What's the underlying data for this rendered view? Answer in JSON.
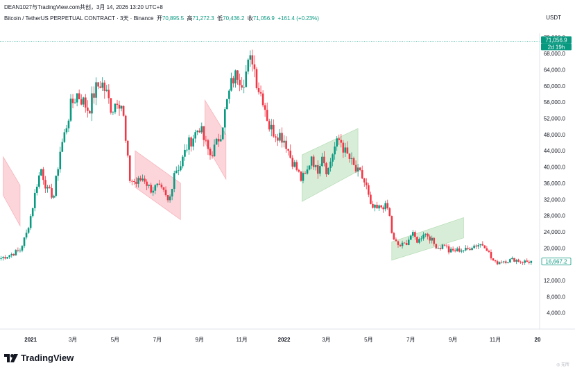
{
  "author_line": "DEAN1027与TradingView.com共创，3月 14, 2026 13:20 UTC+8",
  "symbol": {
    "title": "Bitcoin / TetherUS PERPETUAL CONTRACT · 3天 · Binance",
    "open_label": "开",
    "open": "70,895.5",
    "high_label": "高",
    "high": "71,272.3",
    "low_label": "低",
    "low": "70,436.2",
    "close_label": "收",
    "close": "71,056.9",
    "change": "+161.4 (+0.23%)"
  },
  "currency": "USDT",
  "logo_text": "TradingView",
  "watermark": "◎ 无所",
  "colors": {
    "up": "#089981",
    "down": "#f23645",
    "green_channel": "#b8dfb8",
    "red_channel": "#f7b3bb"
  },
  "chart_data": {
    "type": "candlestick",
    "y_ticks": [
      {
        "value": 4000,
        "label": "4,000.0"
      },
      {
        "value": 8000,
        "label": "8,000.0"
      },
      {
        "value": 12000,
        "label": "12,000.0"
      },
      {
        "value": 20000,
        "label": "20,000.0"
      },
      {
        "value": 24000,
        "label": "24,000.0"
      },
      {
        "value": 28000,
        "label": "28,000.0"
      },
      {
        "value": 32000,
        "label": "32,000.0"
      },
      {
        "value": 36000,
        "label": "36,000.0"
      },
      {
        "value": 40000,
        "label": "40,000.0"
      },
      {
        "value": 44000,
        "label": "44,000.0"
      },
      {
        "value": 48000,
        "label": "48,000.0"
      },
      {
        "value": 52000,
        "label": "52,000.0"
      },
      {
        "value": 56000,
        "label": "56,000.0"
      },
      {
        "value": 60000,
        "label": "60,000.0"
      },
      {
        "value": 64000,
        "label": "64,000.0"
      },
      {
        "value": 68000,
        "label": "68,000.0"
      },
      {
        "value": 72000,
        "label": "72,000.0"
      }
    ],
    "ylim": [
      0,
      73000
    ],
    "x_ticks": [
      {
        "month": 0,
        "label": "2021",
        "bold": true
      },
      {
        "month": 2,
        "label": "3月"
      },
      {
        "month": 4,
        "label": "5月"
      },
      {
        "month": 6,
        "label": "7月"
      },
      {
        "month": 8,
        "label": "9月"
      },
      {
        "month": 10,
        "label": "11月"
      },
      {
        "month": 12,
        "label": "2022",
        "bold": true
      },
      {
        "month": 14,
        "label": "3月"
      },
      {
        "month": 16,
        "label": "5月"
      },
      {
        "month": 18,
        "label": "7月"
      },
      {
        "month": 20,
        "label": "9月"
      },
      {
        "month": 22,
        "label": "11月"
      },
      {
        "month": 24,
        "label": "20",
        "bold": true
      }
    ],
    "xlim_months": [
      -1.45,
      24.1
    ],
    "last_price": {
      "value": 71056.9,
      "label": "71,056.9",
      "countdown": "2d 19h"
    },
    "price_marker": {
      "value": 16667.2,
      "label": "16,667.2"
    },
    "anchors": [
      [
        -1.4,
        17500
      ],
      [
        -0.9,
        18500
      ],
      [
        -0.5,
        19500
      ],
      [
        -0.2,
        23500
      ],
      [
        0.05,
        29000
      ],
      [
        0.3,
        36000
      ],
      [
        0.5,
        39500
      ],
      [
        0.8,
        34000
      ],
      [
        1.1,
        33000
      ],
      [
        1.4,
        44000
      ],
      [
        1.6,
        48000
      ],
      [
        1.9,
        55000
      ],
      [
        2.2,
        58000
      ],
      [
        2.45,
        56500
      ],
      [
        2.75,
        54000
      ],
      [
        3.05,
        59000
      ],
      [
        3.35,
        61000
      ],
      [
        3.6,
        58000
      ],
      [
        3.85,
        54000
      ],
      [
        4.1,
        57000
      ],
      [
        4.35,
        55000
      ],
      [
        4.5,
        46000
      ],
      [
        4.7,
        37000
      ],
      [
        5.0,
        36000
      ],
      [
        5.35,
        37500
      ],
      [
        5.65,
        34500
      ],
      [
        6.0,
        35000
      ],
      [
        6.3,
        33500
      ],
      [
        6.55,
        31000
      ],
      [
        6.8,
        39000
      ],
      [
        7.1,
        40500
      ],
      [
        7.4,
        45000
      ],
      [
        7.7,
        47500
      ],
      [
        8.0,
        50000
      ],
      [
        8.25,
        46000
      ],
      [
        8.5,
        43000
      ],
      [
        8.75,
        45000
      ],
      [
        9.0,
        48500
      ],
      [
        9.3,
        56000
      ],
      [
        9.55,
        61500
      ],
      [
        9.8,
        63000
      ],
      [
        10.05,
        61000
      ],
      [
        10.3,
        65000
      ],
      [
        10.5,
        67000
      ],
      [
        10.75,
        60000
      ],
      [
        11.0,
        57000
      ],
      [
        11.3,
        50000
      ],
      [
        11.55,
        48500
      ],
      [
        11.8,
        48000
      ],
      [
        12.05,
        46500
      ],
      [
        12.3,
        42500
      ],
      [
        12.55,
        40000
      ],
      [
        12.8,
        37000
      ],
      [
        13.05,
        38000
      ],
      [
        13.3,
        43000
      ],
      [
        13.55,
        38500
      ],
      [
        13.8,
        43500
      ],
      [
        14.05,
        38500
      ],
      [
        14.35,
        44500
      ],
      [
        14.65,
        47000
      ],
      [
        14.85,
        44000
      ],
      [
        15.1,
        42000
      ],
      [
        15.4,
        39000
      ],
      [
        15.65,
        38000
      ],
      [
        15.9,
        35000
      ],
      [
        16.1,
        30000
      ],
      [
        16.4,
        29500
      ],
      [
        16.7,
        30500
      ],
      [
        16.95,
        29500
      ],
      [
        17.15,
        22000
      ],
      [
        17.45,
        20500
      ],
      [
        17.75,
        21000
      ],
      [
        18.05,
        23500
      ],
      [
        18.35,
        21500
      ],
      [
        18.6,
        23800
      ],
      [
        18.85,
        23000
      ],
      [
        19.1,
        21000
      ],
      [
        19.35,
        20000
      ],
      [
        19.6,
        21000
      ],
      [
        19.8,
        19200
      ],
      [
        20.05,
        19300
      ],
      [
        20.35,
        19600
      ],
      [
        20.65,
        19500
      ],
      [
        20.9,
        20500
      ],
      [
        21.15,
        20800
      ],
      [
        21.35,
        21000
      ],
      [
        21.55,
        20500
      ],
      [
        21.8,
        17500
      ],
      [
        22.0,
        16300
      ],
      [
        22.3,
        16800
      ],
      [
        22.6,
        16900
      ],
      [
        22.9,
        17200
      ],
      [
        23.2,
        16700
      ],
      [
        23.5,
        16600
      ],
      [
        23.75,
        16700
      ]
    ],
    "channels": [
      {
        "color": "red",
        "points": [
          [
            -1.3,
            42500
          ],
          [
            -0.5,
            35500
          ],
          [
            -0.5,
            25500
          ],
          [
            -1.3,
            33000
          ]
        ]
      },
      {
        "color": "red",
        "points": [
          [
            4.95,
            44000
          ],
          [
            7.1,
            36000
          ],
          [
            7.1,
            27000
          ],
          [
            4.95,
            35000
          ]
        ]
      },
      {
        "color": "red",
        "points": [
          [
            8.25,
            56500
          ],
          [
            9.25,
            48000
          ],
          [
            9.25,
            37000
          ],
          [
            8.25,
            46000
          ]
        ]
      },
      {
        "color": "green",
        "points": [
          [
            12.85,
            43000
          ],
          [
            15.5,
            49500
          ],
          [
            15.5,
            39000
          ],
          [
            12.85,
            31500
          ]
        ]
      },
      {
        "color": "green",
        "points": [
          [
            17.1,
            21500
          ],
          [
            20.5,
            27500
          ],
          [
            20.5,
            22500
          ],
          [
            17.1,
            17000
          ]
        ]
      }
    ]
  }
}
